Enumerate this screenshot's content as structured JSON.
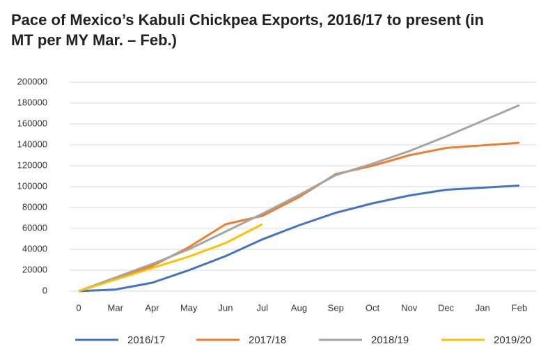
{
  "chart_data": {
    "type": "line",
    "title": "Pace of Mexico’s Kabuli Chickpea Exports, 2016/17 to present (in MT per MY Mar. – Feb.)",
    "categories": [
      "0",
      "Mar",
      "Apr",
      "May",
      "Jun",
      "Jul",
      "Aug",
      "Sep",
      "Oct",
      "Nov",
      "Dec",
      "Jan",
      "Feb"
    ],
    "series": [
      {
        "name": "2016/17",
        "color": "#4472c4",
        "values": [
          0,
          1500,
          8000,
          20000,
          33500,
          49500,
          63000,
          75000,
          84000,
          91500,
          97000,
          99000,
          101000
        ]
      },
      {
        "name": "2017/18",
        "color": "#ed7d31",
        "values": [
          0,
          12000,
          24000,
          42000,
          64000,
          72000,
          90000,
          112000,
          120000,
          130000,
          137000,
          139500,
          142000
        ]
      },
      {
        "name": "2018/19",
        "color": "#a5a5a5",
        "values": [
          0,
          13000,
          26000,
          40000,
          57000,
          74000,
          92000,
          111000,
          122000,
          134000,
          148000,
          163000,
          178000
        ]
      },
      {
        "name": "2019/20",
        "color": "#ffc000",
        "values": [
          0,
          11000,
          22000,
          33000,
          46000,
          64000,
          null,
          null,
          null,
          null,
          null,
          null,
          null
        ]
      }
    ],
    "ylim": [
      0,
      200000
    ],
    "yticks": [
      0,
      20000,
      40000,
      60000,
      80000,
      100000,
      120000,
      140000,
      160000,
      180000,
      200000
    ],
    "grid": true,
    "legend": "bottom"
  }
}
